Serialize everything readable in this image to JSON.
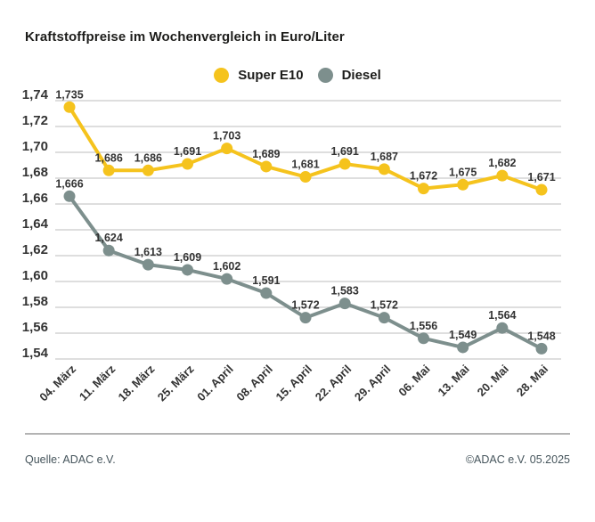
{
  "title": "Kraftstoffpreise im Wochenvergleich in Euro/Liter",
  "legend": [
    {
      "id": "super-e10",
      "label": "Super E10"
    },
    {
      "id": "diesel",
      "label": "Diesel"
    }
  ],
  "footer": {
    "source": "Quelle: ADAC e.V.",
    "copyright": "©ADAC e.V. 05.2025"
  },
  "colors": {
    "super_e10": "#f5c31d",
    "diesel": "#7d8f8d",
    "grid": "#c9c9c9",
    "axis_text": "#333333",
    "title_text": "#1d1d1b",
    "footer_text": "#46555c"
  },
  "chart_data": {
    "type": "line",
    "title": "Kraftstoffpreise im Wochenvergleich in Euro/Liter",
    "xlabel": "",
    "ylabel": "Euro/Liter",
    "ylim": [
      1.54,
      1.74
    ],
    "grid": true,
    "legend_position": "top-center",
    "categories": [
      "04. März",
      "11. März",
      "18. März",
      "25. März",
      "01. April",
      "08. April",
      "15. April",
      "22. April",
      "29. April",
      "06. Mai",
      "13. Mai",
      "20. Mai",
      "28. Mai"
    ],
    "y_axis": {
      "tick_values": [
        1.74,
        1.72,
        1.7,
        1.68,
        1.66,
        1.64,
        1.62,
        1.6,
        1.58,
        1.56,
        1.54
      ],
      "tick_labels": [
        "1,74",
        "1,72",
        "1,70",
        "1,68",
        "1,66",
        "1,64",
        "1,62",
        "1,60",
        "1,58",
        "1,56",
        "1,54"
      ]
    },
    "series": [
      {
        "id": "super-e10",
        "name": "Super E10",
        "color_key": "super_e10",
        "values": [
          1.735,
          1.686,
          1.686,
          1.691,
          1.703,
          1.689,
          1.681,
          1.691,
          1.687,
          1.672,
          1.675,
          1.682,
          1.671
        ],
        "labels": [
          "1,735",
          "1,686",
          "1,686",
          "1,691",
          "1,703",
          "1,689",
          "1,681",
          "1,691",
          "1,687",
          "1,672",
          "1,675",
          "1,682",
          "1,671"
        ]
      },
      {
        "id": "diesel",
        "name": "Diesel",
        "color_key": "diesel",
        "values": [
          1.666,
          1.624,
          1.613,
          1.609,
          1.602,
          1.591,
          1.572,
          1.583,
          1.572,
          1.556,
          1.549,
          1.564,
          1.548
        ],
        "labels": [
          "1,666",
          "1,624",
          "1,613",
          "1,609",
          "1,602",
          "1,591",
          "1,572",
          "1,583",
          "1,572",
          "1,556",
          "1,549",
          "1,564",
          "1,548"
        ]
      }
    ]
  }
}
